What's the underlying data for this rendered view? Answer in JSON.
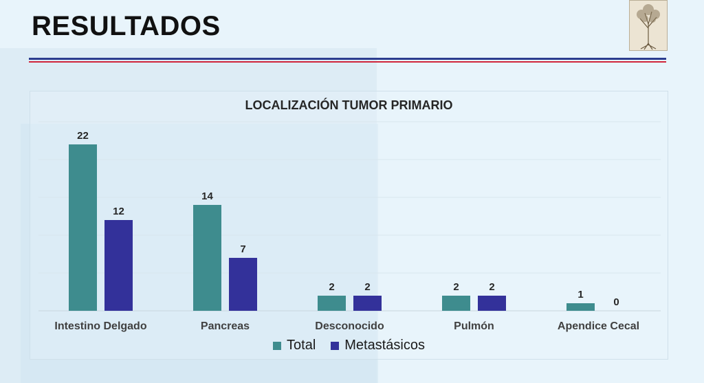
{
  "slide": {
    "title": "RESULTADOS"
  },
  "colors": {
    "total": "#3e8c8e",
    "metastasicos": "#33319a",
    "rule_blue": "#2b3d8f",
    "rule_red": "#d0243a"
  },
  "logo": {
    "icon": "tree-roots-logo-icon"
  },
  "chart_data": {
    "type": "bar",
    "title": "LOCALIZACIÓN TUMOR PRIMARIO",
    "categories": [
      "Intestino Delgado",
      "Pancreas",
      "Desconocido",
      "Pulmón",
      "Apendice Cecal"
    ],
    "series": [
      {
        "name": "Total",
        "values": [
          22,
          14,
          2,
          2,
          1
        ]
      },
      {
        "name": "Metastásicos",
        "values": [
          12,
          7,
          2,
          2,
          0
        ]
      }
    ],
    "xlabel": "",
    "ylabel": "",
    "ylim": [
      0,
      25
    ],
    "grid": true,
    "legend_position": "bottom",
    "data_labels": true
  }
}
